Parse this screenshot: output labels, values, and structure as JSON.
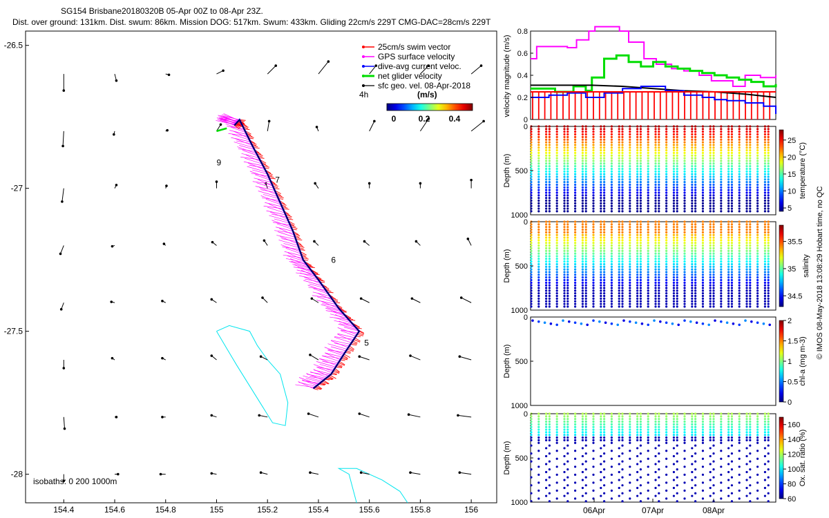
{
  "header": {
    "title_line1": "SG154 Brisbane20180320B 05-Apr 00Z to 08-Apr 23Z.",
    "title_line2": "Dist. over ground: 131km. Dist. swum: 86km. Mission DOG: 517km. Swum: 433km. Gliding 22cm/s 229T CMG-DAC=28cm/s 229T"
  },
  "map": {
    "xticks": [
      "154.4",
      "154.6",
      "154.8",
      "155",
      "155.2",
      "155.4",
      "155.6",
      "155.8",
      "156"
    ],
    "yticks": [
      "-26.5",
      "-27",
      "-27.5",
      "-28"
    ],
    "xlim": [
      154.25,
      156.1
    ],
    "ylim": [
      -28.1,
      -26.45
    ],
    "legend": [
      {
        "label": "25cm/s swim vector",
        "color": "#ff0000"
      },
      {
        "label": "GPS surface velocity",
        "color": "#ff00ff"
      },
      {
        "label": "dive-avg current veloc.",
        "color": "#0000ff"
      },
      {
        "label": "net glider velocity",
        "color": "#00dd00"
      },
      {
        "label": "sfc geo. vel. 08-Apr-2018",
        "color": "#000000"
      }
    ],
    "colorbar_title": "(m/s)",
    "colorbar_ticks": [
      "0",
      "0.2",
      "0.4"
    ],
    "label_4h": "4h",
    "isobaths_label": "isobaths: 0   200  1000m",
    "day_labels": [
      {
        "text": "9",
        "lon": 155.0,
        "lat": -26.92
      },
      {
        "text": "7",
        "lon": 155.23,
        "lat": -26.98
      },
      {
        "text": "6",
        "lon": 155.45,
        "lat": -27.26
      },
      {
        "text": "5",
        "lon": 155.58,
        "lat": -27.55
      }
    ],
    "track": [
      [
        155.07,
        -26.78
      ],
      [
        155.09,
        -26.76
      ],
      [
        155.14,
        -26.85
      ],
      [
        155.2,
        -26.95
      ],
      [
        155.25,
        -27.05
      ],
      [
        155.3,
        -27.15
      ],
      [
        155.34,
        -27.25
      ],
      [
        155.4,
        -27.32
      ],
      [
        155.48,
        -27.42
      ],
      [
        155.56,
        -27.5
      ],
      [
        155.5,
        -27.58
      ],
      [
        155.45,
        -27.65
      ],
      [
        155.38,
        -27.7
      ]
    ],
    "isobath_polygons": [
      [
        [
          155.0,
          -27.5
        ],
        [
          155.05,
          -27.48
        ],
        [
          155.13,
          -27.5
        ],
        [
          155.16,
          -27.55
        ],
        [
          155.2,
          -27.6
        ],
        [
          155.25,
          -27.65
        ],
        [
          155.28,
          -27.75
        ],
        [
          155.27,
          -27.83
        ],
        [
          155.22,
          -27.82
        ],
        [
          155.15,
          -27.72
        ],
        [
          155.08,
          -27.62
        ],
        [
          155.04,
          -27.56
        ],
        [
          155.0,
          -27.5
        ]
      ],
      [
        [
          155.55,
          -28.1
        ],
        [
          155.52,
          -28.0
        ],
        [
          155.48,
          -27.98
        ],
        [
          155.55,
          -27.98
        ],
        [
          155.65,
          -28.02
        ],
        [
          155.72,
          -28.06
        ],
        [
          155.75,
          -28.1
        ]
      ]
    ],
    "geo_vectors": {
      "lons": [
        154.4,
        154.6,
        154.8,
        155.0,
        155.2,
        155.4,
        155.6,
        155.8,
        156.0
      ],
      "lats": [
        -26.6,
        -26.8,
        -27.0,
        -27.2,
        -27.4,
        -27.6,
        -27.8,
        -28.0
      ],
      "u": [
        [
          0.0,
          0.02,
          0.04,
          0.08,
          0.1,
          0.12,
          0.08,
          0.1,
          0.12
        ],
        [
          -0.01,
          -0.01,
          0.02,
          0.05,
          0.02,
          -0.02,
          0.06,
          0.1,
          0.15
        ],
        [
          -0.02,
          0.02,
          0.01,
          0.0,
          -0.02,
          -0.04,
          0.0,
          0.0,
          0.0
        ],
        [
          -0.04,
          -0.03,
          -0.02,
          -0.05,
          -0.04,
          -0.05,
          -0.06,
          -0.05,
          -0.04
        ],
        [
          -0.03,
          -0.04,
          -0.04,
          -0.06,
          -0.06,
          -0.08,
          -0.1,
          -0.1,
          -0.12
        ],
        [
          0.0,
          -0.03,
          -0.04,
          -0.06,
          -0.08,
          -0.1,
          -0.12,
          -0.12,
          -0.14
        ],
        [
          0.01,
          0.02,
          -0.04,
          -0.06,
          -0.1,
          -0.12,
          -0.12,
          -0.14,
          -0.16
        ],
        [
          0.0,
          0.04,
          -0.06,
          -0.06,
          -0.08,
          -0.1,
          -0.1,
          -0.12,
          -0.14
        ]
      ],
      "v": [
        [
          -0.2,
          -0.08,
          -0.01,
          0.04,
          0.1,
          0.15,
          0.1,
          0.1,
          0.1
        ],
        [
          -0.18,
          -0.04,
          0.01,
          0.08,
          0.12,
          0.05,
          0.12,
          0.15,
          0.12
        ],
        [
          -0.16,
          0.04,
          0.03,
          0.08,
          0.06,
          0.06,
          0.06,
          0.06,
          0.1
        ],
        [
          -0.1,
          -0.01,
          0.02,
          0.04,
          0.06,
          0.05,
          0.05,
          0.05,
          0.08
        ],
        [
          -0.08,
          0.01,
          0.02,
          0.04,
          0.06,
          0.05,
          0.05,
          0.05,
          0.06
        ],
        [
          -0.1,
          0.02,
          0.02,
          0.05,
          0.04,
          0.06,
          0.04,
          0.05,
          0.04
        ],
        [
          -0.14,
          0.0,
          0.0,
          0.02,
          0.02,
          0.04,
          0.04,
          0.03,
          0.02
        ],
        [
          -0.08,
          0.0,
          0.0,
          0.01,
          0.02,
          0.02,
          0.02,
          0.02,
          0.02
        ]
      ]
    }
  },
  "chart_data": [
    {
      "type": "line",
      "title": "",
      "ylabel": "velocity magnitude (m/s)",
      "ylim": [
        0,
        0.8
      ],
      "yticks": [
        "0",
        "0.2",
        "0.4",
        "0.6",
        "0.8"
      ],
      "xlim_days": [
        5.0,
        9.0
      ],
      "series": [
        {
          "name": "GPS surface velocity",
          "color": "#ff00ff",
          "x": [
            5.0,
            5.1,
            5.6,
            5.75,
            5.95,
            6.05,
            6.45,
            6.6,
            6.85,
            7.05,
            7.3,
            7.5,
            7.75,
            7.95,
            8.3,
            8.5,
            8.75,
            9.0
          ],
          "y": [
            0.55,
            0.66,
            0.65,
            0.72,
            0.8,
            0.84,
            0.8,
            0.7,
            0.55,
            0.5,
            0.46,
            0.44,
            0.4,
            0.35,
            0.3,
            0.4,
            0.38,
            0.4
          ]
        },
        {
          "name": "net glider velocity",
          "color": "#00dd00",
          "x": [
            5.0,
            5.4,
            5.7,
            5.9,
            6.0,
            6.2,
            6.4,
            6.6,
            6.8,
            7.0,
            7.2,
            7.4,
            7.6,
            7.8,
            8.0,
            8.2,
            8.4,
            8.6,
            8.8,
            9.0
          ],
          "y": [
            0.28,
            0.25,
            0.3,
            0.26,
            0.38,
            0.55,
            0.58,
            0.52,
            0.48,
            0.52,
            0.48,
            0.46,
            0.44,
            0.42,
            0.4,
            0.38,
            0.36,
            0.34,
            0.3,
            0.32
          ]
        },
        {
          "name": "sfc geo. vel.",
          "color": "#000000",
          "x": [
            5.0,
            6.0,
            6.5,
            7.0,
            7.5,
            8.0,
            8.5,
            9.0
          ],
          "y": [
            0.31,
            0.31,
            0.3,
            0.28,
            0.26,
            0.25,
            0.23,
            0.2
          ]
        },
        {
          "name": "dive-avg current veloc.",
          "color": "#0000ff",
          "x": [
            5.0,
            5.3,
            5.6,
            5.9,
            6.2,
            6.5,
            6.8,
            7.0,
            7.2,
            7.5,
            7.8,
            8.0,
            8.2,
            8.5,
            8.8,
            9.0
          ],
          "y": [
            0.2,
            0.22,
            0.24,
            0.2,
            0.24,
            0.28,
            0.3,
            0.3,
            0.26,
            0.22,
            0.2,
            0.18,
            0.17,
            0.15,
            0.12,
            0.05
          ]
        },
        {
          "name": "25cm/s swim vector",
          "color": "#ff0000",
          "x": [
            5.0,
            9.0
          ],
          "y": [
            0.25,
            0.25
          ]
        }
      ]
    },
    {
      "type": "scatter",
      "ylabel": "Depth (m)",
      "yticks": [
        "0",
        "500",
        "1000"
      ],
      "ylim": [
        1000,
        0
      ],
      "colorbar_label": "temperature (°C)",
      "colorbar_ticks": [
        "5",
        "10",
        "15",
        "20",
        "25"
      ],
      "clim": [
        4,
        28
      ]
    },
    {
      "type": "scatter",
      "ylabel": "Depth (m)",
      "yticks": [
        "0",
        "500",
        "1000"
      ],
      "ylim": [
        1000,
        0
      ],
      "colorbar_label": "salinity",
      "colorbar_ticks": [
        "34.5",
        "35",
        "35.5"
      ],
      "clim": [
        34.3,
        35.8
      ]
    },
    {
      "type": "scatter",
      "ylabel": "Depth (m)",
      "yticks": [
        "0",
        "500",
        "1000"
      ],
      "ylim": [
        1000,
        0
      ],
      "colorbar_label": "chl-a (mg m-3)",
      "colorbar_ticks": [
        "0",
        "0.5",
        "1",
        "1.5",
        "2"
      ],
      "clim": [
        0,
        2
      ]
    },
    {
      "type": "scatter",
      "ylabel": "Depth (m)",
      "yticks": [
        "0",
        "500",
        "1000"
      ],
      "ylim": [
        1000,
        0
      ],
      "colorbar_label": "Ox. sat. ratio (%)",
      "colorbar_ticks": [
        "60",
        "80",
        "100",
        "120",
        "140",
        "160"
      ],
      "clim": [
        60,
        170
      ],
      "xticks": [
        "06Apr",
        "07Apr",
        "08Apr"
      ]
    }
  ],
  "footer": {
    "watermark": "© IMOS 08-May-2018 13:08:29 Hobart time, no QC"
  }
}
